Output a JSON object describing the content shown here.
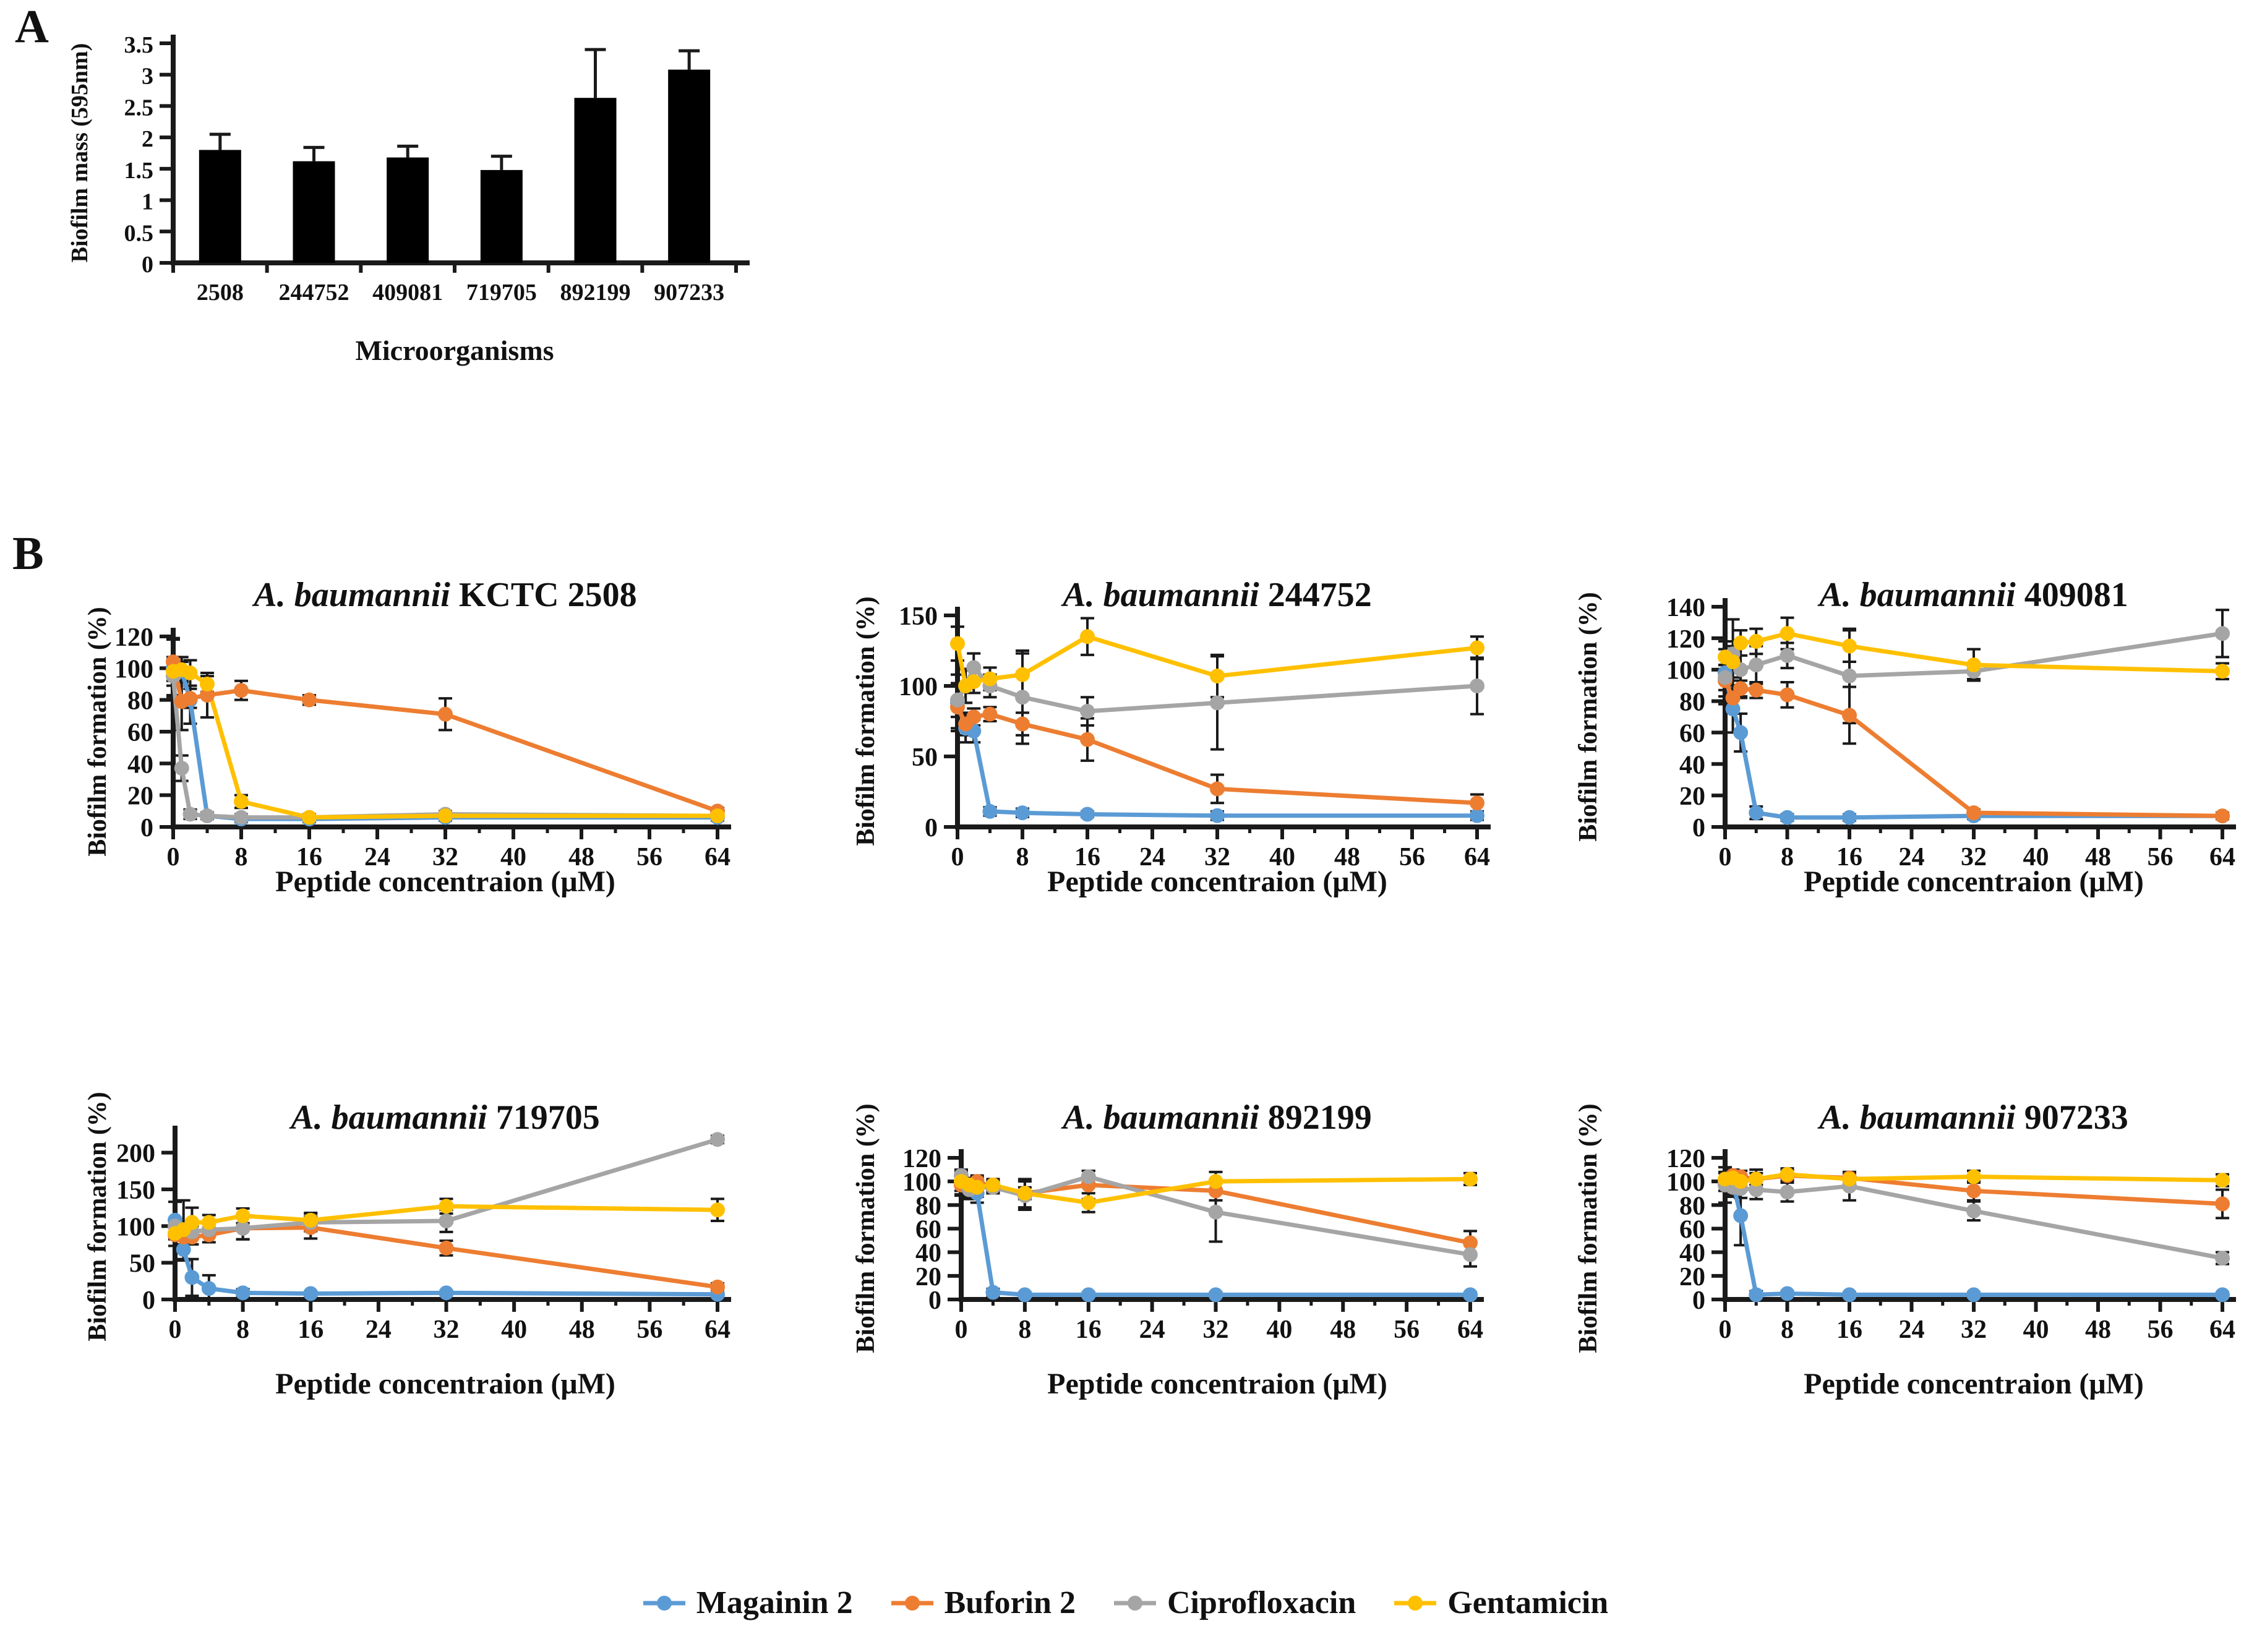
{
  "panel_a_label": "A",
  "panel_b_label": "B",
  "legend": {
    "items": [
      {
        "label": "Magainin 2",
        "color": "#5B9BD5"
      },
      {
        "label": "Buforin 2",
        "color": "#ED7D31"
      },
      {
        "label": "Ciprofloxacin",
        "color": "#A5A5A5"
      },
      {
        "label": "Gentamicin",
        "color": "#FFC000"
      }
    ]
  },
  "chart_data": [
    {
      "type": "bar",
      "title": "",
      "categories": [
        "2508",
        "244752",
        "409081",
        "719705",
        "892199",
        "907233"
      ],
      "values": [
        1.8,
        1.62,
        1.68,
        1.48,
        2.63,
        3.08
      ],
      "errors": [
        0.25,
        0.22,
        0.18,
        0.22,
        0.77,
        0.3
      ],
      "ylabel": "Biofilm mass (595nm)",
      "xlabel": "Microorganisms",
      "ylim": [
        0,
        3.5
      ],
      "yticks": [
        0,
        0.5,
        1,
        1.5,
        2,
        2.5,
        3,
        3.5
      ],
      "bar_color": "#000000",
      "grid": false
    },
    {
      "type": "line",
      "title_italic": "A. baumannii",
      "title_rest": " KCTC 2508",
      "ylabel": "Biofilm formation (%)",
      "xlabel": "Peptide concentraion (μM)",
      "x": [
        0,
        1,
        2,
        4,
        8,
        16,
        32,
        64
      ],
      "xticks": [
        0,
        8,
        16,
        24,
        32,
        40,
        48,
        56,
        64
      ],
      "ylim": [
        0,
        120
      ],
      "yticks": [
        0,
        20,
        40,
        60,
        80,
        100,
        120
      ],
      "grid": false,
      "legend_position": "none",
      "series": [
        {
          "name": "Magainin 2",
          "color": "#5B9BD5",
          "values": [
            100,
            98,
            80,
            7,
            5,
            5,
            6,
            6
          ],
          "errors": [
            18,
            6,
            15,
            2,
            2,
            2,
            2,
            2
          ]
        },
        {
          "name": "Buforin 2",
          "color": "#ED7D31",
          "values": [
            104,
            79,
            81,
            83,
            86,
            80,
            71,
            10
          ],
          "errors": [
            15,
            18,
            6,
            14,
            6,
            3,
            10,
            2
          ]
        },
        {
          "name": "Ciprofloxacin",
          "color": "#A5A5A5",
          "values": [
            95,
            37,
            8,
            7,
            6,
            6,
            8,
            7
          ],
          "errors": [
            12,
            8,
            3,
            2,
            2,
            2,
            2,
            2
          ]
        },
        {
          "name": "Gentamicin",
          "color": "#FFC000",
          "values": [
            98,
            99,
            97,
            90,
            16,
            6,
            7,
            7
          ],
          "errors": [
            6,
            8,
            8,
            5,
            4,
            2,
            2,
            2
          ]
        }
      ]
    },
    {
      "type": "line",
      "title_italic": "A. baumannii",
      "title_rest": " 244752",
      "ylabel": "Biofilm formation (%)",
      "xlabel": "Peptide concentraion (μM)",
      "x": [
        0,
        1,
        2,
        4,
        8,
        16,
        32,
        64
      ],
      "xticks": [
        0,
        8,
        16,
        24,
        32,
        40,
        48,
        56,
        64
      ],
      "ylim": [
        0,
        150
      ],
      "yticks": [
        0,
        50,
        100,
        150
      ],
      "grid": false,
      "legend_position": "none",
      "series": [
        {
          "name": "Magainin 2",
          "color": "#5B9BD5",
          "values": [
            88,
            70,
            68,
            11,
            10,
            9,
            8,
            8
          ],
          "errors": [
            20,
            10,
            8,
            3,
            3,
            2,
            3,
            3
          ]
        },
        {
          "name": "Buforin 2",
          "color": "#ED7D31",
          "values": [
            85,
            73,
            78,
            80,
            73,
            62,
            27,
            17
          ],
          "errors": [
            15,
            8,
            6,
            5,
            8,
            15,
            10,
            6
          ]
        },
        {
          "name": "Ciprofloxacin",
          "color": "#A5A5A5",
          "values": [
            90,
            100,
            113,
            100,
            92,
            82,
            88,
            100
          ],
          "errors": [
            12,
            12,
            10,
            8,
            33,
            10,
            33,
            20
          ]
        },
        {
          "name": "Gentamicin",
          "color": "#FFC000",
          "values": [
            130,
            100,
            103,
            105,
            108,
            135,
            107,
            127
          ],
          "errors": [
            12,
            12,
            8,
            8,
            15,
            13,
            15,
            8
          ]
        }
      ]
    },
    {
      "type": "line",
      "title_italic": "A. baumannii",
      "title_rest": " 409081",
      "ylabel": "Biofilm formation (%)",
      "xlabel": "Peptide concentraion (μM)",
      "x": [
        0,
        1,
        2,
        4,
        8,
        16,
        32,
        64
      ],
      "xticks": [
        0,
        8,
        16,
        24,
        32,
        40,
        48,
        56,
        64
      ],
      "ylim": [
        0,
        140
      ],
      "yticks": [
        0,
        20,
        40,
        60,
        80,
        100,
        120,
        140
      ],
      "grid": false,
      "legend_position": "none",
      "series": [
        {
          "name": "Magainin 2",
          "color": "#5B9BD5",
          "values": [
            98,
            75,
            60,
            9,
            6,
            6,
            7,
            7
          ],
          "errors": [
            20,
            15,
            12,
            4,
            2,
            2,
            2,
            2
          ]
        },
        {
          "name": "Buforin 2",
          "color": "#ED7D31",
          "values": [
            93,
            82,
            88,
            87,
            84,
            71,
            9,
            7
          ],
          "errors": [
            10,
            8,
            5,
            5,
            8,
            18,
            2,
            2
          ]
        },
        {
          "name": "Ciprofloxacin",
          "color": "#A5A5A5",
          "values": [
            95,
            110,
            100,
            103,
            109,
            96,
            99,
            123
          ],
          "errors": [
            8,
            22,
            18,
            12,
            8,
            30,
            5,
            15
          ]
        },
        {
          "name": "Gentamicin",
          "color": "#FFC000",
          "values": [
            108,
            105,
            117,
            118,
            123,
            115,
            103,
            99
          ],
          "errors": [
            5,
            10,
            8,
            8,
            10,
            10,
            10,
            5
          ]
        }
      ]
    },
    {
      "type": "line",
      "title_italic": "A. baumannii",
      "title_rest": " 719705",
      "ylabel": "Biofilm formation (%)",
      "xlabel": "Peptide concentraion (μM)",
      "x": [
        0,
        1,
        2,
        4,
        8,
        16,
        32,
        64
      ],
      "xticks": [
        0,
        8,
        16,
        24,
        32,
        40,
        48,
        56,
        64
      ],
      "ylim": [
        0,
        225
      ],
      "yticks": [
        0,
        50,
        100,
        150,
        200
      ],
      "grid": false,
      "legend_position": "none",
      "series": [
        {
          "name": "Magainin 2",
          "color": "#5B9BD5",
          "values": [
            108,
            68,
            30,
            15,
            9,
            8,
            9,
            7
          ],
          "errors": [
            25,
            15,
            25,
            18,
            5,
            3,
            3,
            3
          ]
        },
        {
          "name": "Buforin 2",
          "color": "#ED7D31",
          "values": [
            88,
            85,
            85,
            88,
            97,
            98,
            70,
            17
          ],
          "errors": [
            15,
            10,
            10,
            10,
            15,
            15,
            10,
            5
          ]
        },
        {
          "name": "Ciprofloxacin",
          "color": "#A5A5A5",
          "values": [
            100,
            95,
            92,
            95,
            97,
            105,
            107,
            218
          ],
          "errors": [
            10,
            8,
            8,
            8,
            15,
            12,
            15,
            5
          ]
        },
        {
          "name": "Gentamicin",
          "color": "#FFC000",
          "values": [
            90,
            95,
            105,
            105,
            114,
            108,
            127,
            122
          ],
          "errors": [
            8,
            40,
            20,
            10,
            10,
            10,
            10,
            15
          ]
        }
      ]
    },
    {
      "type": "line",
      "title_italic": "A. baumannii",
      "title_rest": " 892199",
      "ylabel": "Biofilm formation (%)",
      "xlabel": "Peptide concentraion (μM)",
      "x": [
        0,
        1,
        2,
        4,
        8,
        16,
        32,
        64
      ],
      "xticks": [
        0,
        8,
        16,
        24,
        32,
        40,
        48,
        56,
        64
      ],
      "ylim": [
        0,
        120
      ],
      "yticks": [
        0,
        20,
        40,
        60,
        80,
        100,
        120
      ],
      "grid": false,
      "legend_position": "none",
      "series": [
        {
          "name": "Magainin 2",
          "color": "#5B9BD5",
          "values": [
            98,
            95,
            90,
            6,
            4,
            4,
            4,
            4
          ],
          "errors": [
            10,
            8,
            8,
            3,
            2,
            2,
            2,
            2
          ]
        },
        {
          "name": "Buforin 2",
          "color": "#ED7D31",
          "values": [
            97,
            95,
            100,
            95,
            90,
            97,
            92,
            48
          ],
          "errors": [
            8,
            8,
            5,
            5,
            5,
            12,
            8,
            10
          ]
        },
        {
          "name": "Ciprofloxacin",
          "color": "#A5A5A5",
          "values": [
            105,
            93,
            95,
            95,
            88,
            104,
            74,
            38
          ],
          "errors": [
            5,
            8,
            8,
            5,
            12,
            5,
            25,
            10
          ]
        },
        {
          "name": "Gentamicin",
          "color": "#FFC000",
          "values": [
            100,
            97,
            95,
            97,
            90,
            82,
            100,
            102
          ],
          "errors": [
            8,
            5,
            5,
            5,
            12,
            8,
            8,
            5
          ]
        }
      ]
    },
    {
      "type": "line",
      "title_italic": "A. baumannii",
      "title_rest": " 907233",
      "ylabel": "Biofilm formation (%)",
      "xlabel": "Peptide concentraion (μM)",
      "x": [
        0,
        1,
        2,
        4,
        8,
        16,
        32,
        64
      ],
      "xticks": [
        0,
        8,
        16,
        24,
        32,
        40,
        48,
        56,
        64
      ],
      "ylim": [
        0,
        120
      ],
      "yticks": [
        0,
        20,
        40,
        60,
        80,
        100,
        120
      ],
      "grid": false,
      "legend_position": "none",
      "series": [
        {
          "name": "Magainin 2",
          "color": "#5B9BD5",
          "values": [
            100,
            99,
            71,
            4,
            5,
            4,
            4,
            4
          ],
          "errors": [
            8,
            10,
            25,
            3,
            2,
            2,
            2,
            2
          ]
        },
        {
          "name": "Buforin 2",
          "color": "#ED7D31",
          "values": [
            100,
            105,
            104,
            102,
            105,
            103,
            92,
            81
          ],
          "errors": [
            8,
            5,
            5,
            8,
            5,
            5,
            8,
            12
          ]
        },
        {
          "name": "Ciprofloxacin",
          "color": "#A5A5A5",
          "values": [
            97,
            95,
            94,
            93,
            91,
            96,
            75,
            35
          ],
          "errors": [
            15,
            8,
            8,
            8,
            8,
            12,
            8,
            5
          ]
        },
        {
          "name": "Gentamicin",
          "color": "#FFC000",
          "values": [
            102,
            103,
            100,
            102,
            106,
            102,
            104,
            101
          ],
          "errors": [
            5,
            5,
            5,
            5,
            5,
            5,
            5,
            5
          ]
        }
      ]
    }
  ]
}
